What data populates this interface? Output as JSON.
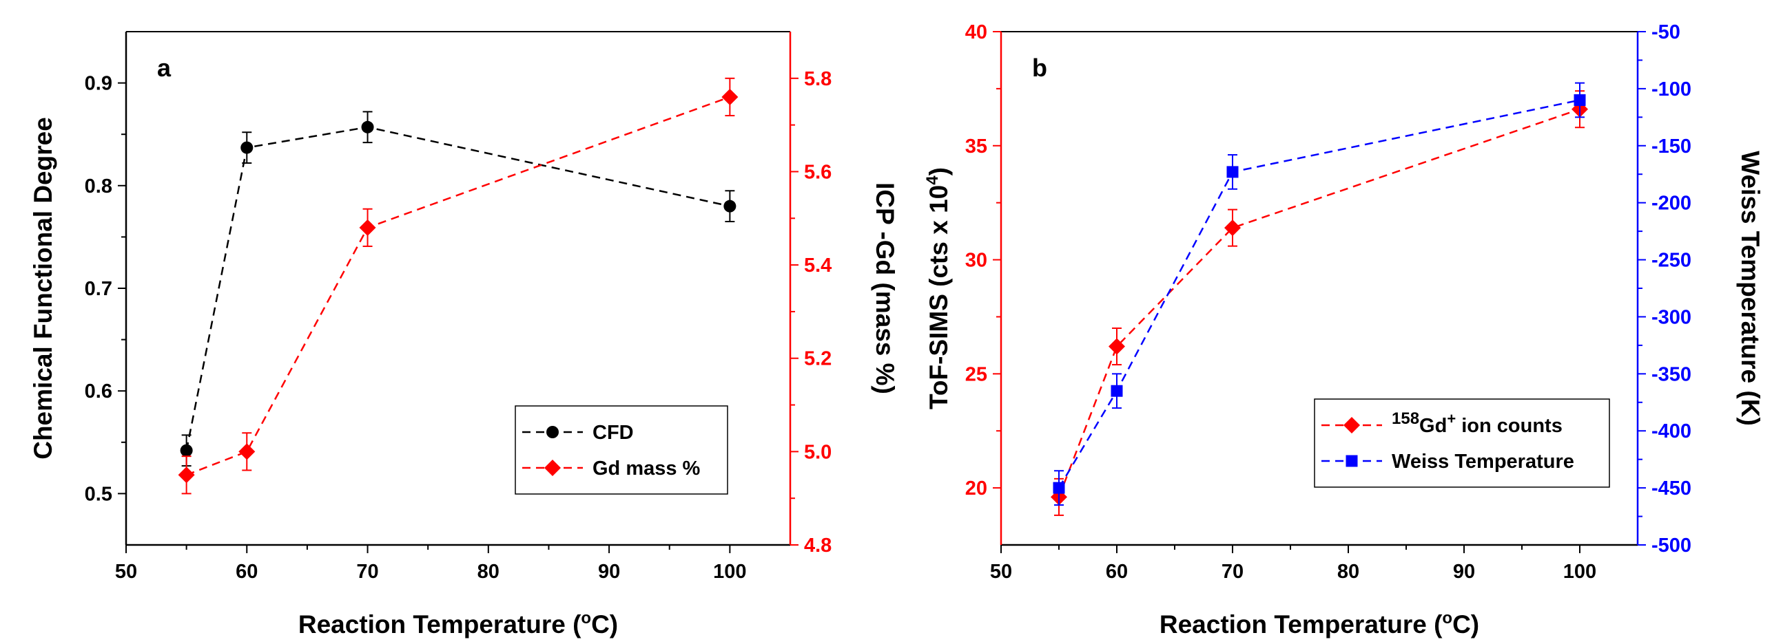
{
  "chart_data": [
    {
      "type": "line",
      "panel_label": "a",
      "xlabel": "Reaction Temperature (",
      "xlabel_super": "o",
      "xlabel_end": "C)",
      "ylabel": "Chemical Functional Degree",
      "y2label": "ICP -Gd (mass %)",
      "xlim": [
        50,
        105
      ],
      "ylim": [
        0.45,
        0.95
      ],
      "y2lim": [
        4.8,
        5.9
      ],
      "xticks": [
        "50",
        "60",
        "70",
        "80",
        "90",
        "100"
      ],
      "xtick_values": [
        50,
        60,
        70,
        80,
        90,
        100
      ],
      "yticks": [
        "0.5",
        "0.6",
        "0.7",
        "0.8",
        "0.9"
      ],
      "ytick_values": [
        0.5,
        0.6,
        0.7,
        0.8,
        0.9
      ],
      "y2ticks": [
        "4.8",
        "5.0",
        "5.2",
        "5.4",
        "5.6",
        "5.8"
      ],
      "y2tick_values": [
        4.8,
        5.0,
        5.2,
        5.4,
        5.6,
        5.8
      ],
      "left_axis_color": "#000000",
      "right_axis_color": "#ff0000",
      "legend_position": "bottom-right",
      "series": [
        {
          "name": "CFD",
          "axis": "left",
          "color": "#000000",
          "marker": "circle",
          "x": [
            55,
            60,
            70,
            100
          ],
          "values": [
            0.542,
            0.837,
            0.857,
            0.78
          ],
          "errors": [
            0.015,
            0.015,
            0.015,
            0.015
          ]
        },
        {
          "name": "Gd mass %",
          "axis": "right",
          "color": "#ff0000",
          "marker": "diamond",
          "x": [
            55,
            60,
            70,
            100
          ],
          "values": [
            4.95,
            5.0,
            5.48,
            5.76
          ],
          "errors": [
            0.04,
            0.04,
            0.04,
            0.04
          ]
        }
      ]
    },
    {
      "type": "line",
      "panel_label": "b",
      "xlabel": "Reaction Temperature (",
      "xlabel_super": "o",
      "xlabel_end": "C)",
      "ylabel": "ToF-SIMS (cts x 10",
      "ylabel_super": "4",
      "ylabel_end": ")",
      "y2label": "Weiss Temperature (K)",
      "xlim": [
        50,
        105
      ],
      "ylim": [
        17.5,
        40
      ],
      "y2lim": [
        -500,
        -50
      ],
      "xticks": [
        "50",
        "60",
        "70",
        "80",
        "90",
        "100"
      ],
      "xtick_values": [
        50,
        60,
        70,
        80,
        90,
        100
      ],
      "yticks": [
        "20",
        "25",
        "30",
        "35",
        "40"
      ],
      "ytick_values": [
        20,
        25,
        30,
        35,
        40
      ],
      "y2ticks": [
        "-500",
        "-450",
        "-400",
        "-350",
        "-300",
        "-250",
        "-200",
        "-150",
        "-100",
        "-50"
      ],
      "y2tick_values": [
        -500,
        -450,
        -400,
        -350,
        -300,
        -250,
        -200,
        -150,
        -100,
        -50
      ],
      "left_axis_color": "#ff0000",
      "right_axis_color": "#0000ff",
      "legend_position": "bottom-right",
      "series": [
        {
          "name_super": "158",
          "name_mid": "Gd",
          "name_super2": "+",
          "name": " ion counts",
          "axis": "left",
          "color": "#ff0000",
          "marker": "diamond",
          "x": [
            55,
            60,
            70,
            100
          ],
          "values": [
            19.6,
            26.2,
            31.4,
            36.6
          ],
          "errors": [
            0.8,
            0.8,
            0.8,
            0.8
          ]
        },
        {
          "name": "Weiss Temperature",
          "axis": "right",
          "color": "#0000ff",
          "marker": "square",
          "x": [
            55,
            60,
            70,
            100
          ],
          "values": [
            -450,
            -365,
            -173,
            -110
          ],
          "errors": [
            15,
            15,
            15,
            15
          ]
        }
      ]
    }
  ]
}
